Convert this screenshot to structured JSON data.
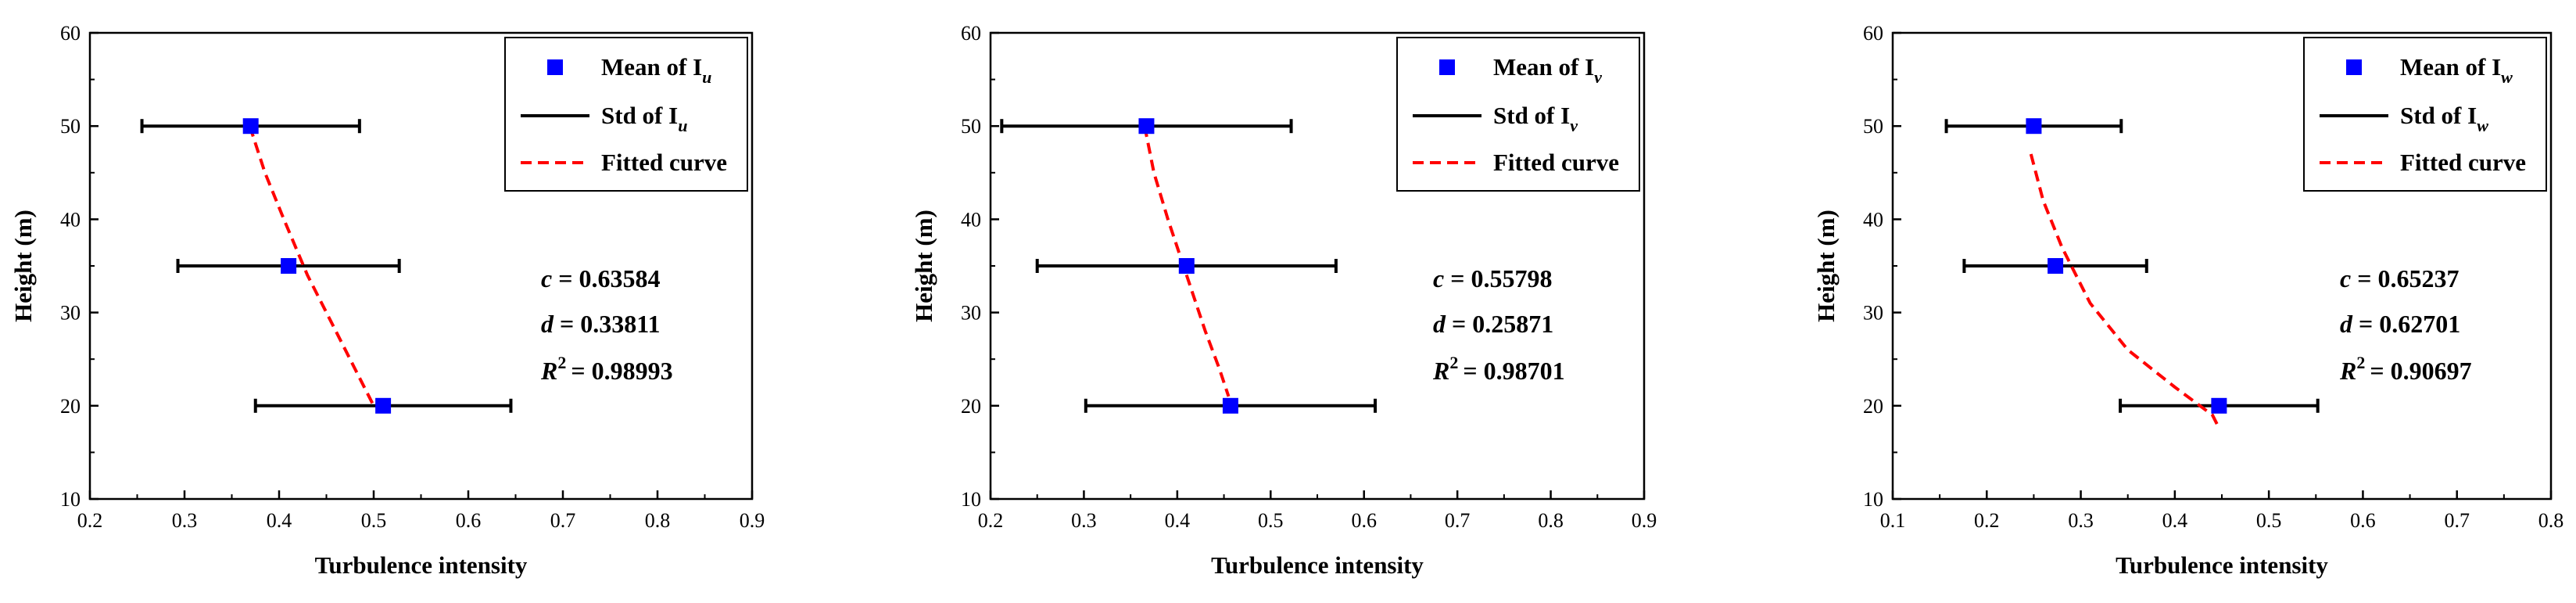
{
  "chart_data": [
    {
      "type": "scatter",
      "xlabel": "Turbulence intensity",
      "ylabel": "Height (m)",
      "xlim": [
        0.2,
        0.9
      ],
      "ylim": [
        10,
        60
      ],
      "xticks": [
        0.2,
        0.3,
        0.4,
        0.5,
        0.6,
        0.7,
        0.8,
        0.9
      ],
      "yticks": [
        10,
        20,
        30,
        40,
        50,
        60
      ],
      "legend": {
        "placement": "top-right",
        "mean_base": "Mean of I",
        "mean_sub": "u",
        "std_base": "Std of I",
        "std_sub": "u",
        "fit_label": "Fitted curve"
      },
      "series": [
        {
          "name": "Mean of Iu",
          "kind": "points",
          "x": [
            0.37,
            0.41,
            0.51
          ],
          "y": [
            50,
            35,
            20
          ]
        },
        {
          "name": "Std of Iu",
          "kind": "errorbar",
          "x": [
            0.37,
            0.41,
            0.51
          ],
          "y": [
            50,
            35,
            20
          ],
          "xerr": [
            0.115,
            0.117,
            0.135
          ]
        },
        {
          "name": "Fitted curve",
          "kind": "line",
          "x": [
            0.369,
            0.385,
            0.405,
            0.43,
            0.46,
            0.48,
            0.5
          ],
          "y": [
            50,
            45,
            40,
            34,
            28,
            24,
            20
          ]
        }
      ],
      "annotation": {
        "c_symbol": "c",
        "c_value": "= 0.63584",
        "d_symbol": "d",
        "d_value": "= 0.33811",
        "r_symbol": "R",
        "r_sup": "2",
        "r_value": "= 0.98993"
      }
    },
    {
      "type": "scatter",
      "xlabel": "Turbulence intensity",
      "ylabel": "Height (m)",
      "xlim": [
        0.2,
        0.9
      ],
      "ylim": [
        10,
        60
      ],
      "xticks": [
        0.2,
        0.3,
        0.4,
        0.5,
        0.6,
        0.7,
        0.8,
        0.9
      ],
      "yticks": [
        10,
        20,
        30,
        40,
        50,
        60
      ],
      "legend": {
        "placement": "top-right",
        "mean_base": "Mean of I",
        "mean_sub": "v",
        "std_base": "Std of I",
        "std_sub": "v",
        "fit_label": "Fitted curve"
      },
      "series": [
        {
          "name": "Mean of Iv",
          "kind": "points",
          "x": [
            0.367,
            0.41,
            0.457
          ],
          "y": [
            50,
            35,
            20
          ]
        },
        {
          "name": "Std of Iv",
          "kind": "errorbar",
          "x": [
            0.367,
            0.41,
            0.457
          ],
          "y": [
            50,
            35,
            20
          ],
          "xerr": [
            0.155,
            0.16,
            0.155
          ]
        },
        {
          "name": "Fitted curve",
          "kind": "line",
          "x": [
            0.365,
            0.375,
            0.39,
            0.41,
            0.43,
            0.445,
            0.455
          ],
          "y": [
            50,
            45,
            40,
            34,
            28,
            24,
            21
          ]
        }
      ],
      "annotation": {
        "c_symbol": "c",
        "c_value": "= 0.55798",
        "d_symbol": "d",
        "d_value": "= 0.25871",
        "r_symbol": "R",
        "r_sup": "2",
        "r_value": "= 0.98701"
      }
    },
    {
      "type": "scatter",
      "xlabel": "Turbulence intensity",
      "ylabel": "Height (m)",
      "xlim": [
        0.1,
        0.8
      ],
      "ylim": [
        10,
        60
      ],
      "xticks": [
        0.1,
        0.2,
        0.3,
        0.4,
        0.5,
        0.6,
        0.7,
        0.8
      ],
      "yticks": [
        10,
        20,
        30,
        40,
        50,
        60
      ],
      "legend": {
        "placement": "top-right",
        "mean_base": "Mean of I",
        "mean_sub": "w",
        "std_base": "Std of I",
        "std_sub": "w",
        "fit_label": "Fitted curve"
      },
      "series": [
        {
          "name": "Mean of Iw",
          "kind": "points",
          "x": [
            0.25,
            0.273,
            0.447
          ],
          "y": [
            50,
            35,
            20
          ]
        },
        {
          "name": "Std of Iw",
          "kind": "errorbar",
          "x": [
            0.25,
            0.273,
            0.447
          ],
          "y": [
            50,
            35,
            20
          ],
          "xerr": [
            0.093,
            0.097,
            0.105
          ]
        },
        {
          "name": "Fitted curve",
          "kind": "line",
          "x": [
            0.247,
            0.26,
            0.28,
            0.31,
            0.35,
            0.4,
            0.44,
            0.445
          ],
          "y": [
            47,
            42,
            37,
            31,
            26,
            22,
            19,
            18
          ]
        }
      ],
      "annotation": {
        "c_symbol": "c",
        "c_value": "= 0.65237",
        "d_symbol": "d",
        "d_value": "= 0.62701",
        "r_symbol": "R",
        "r_sup": "2",
        "r_value": "= 0.90697"
      }
    }
  ]
}
